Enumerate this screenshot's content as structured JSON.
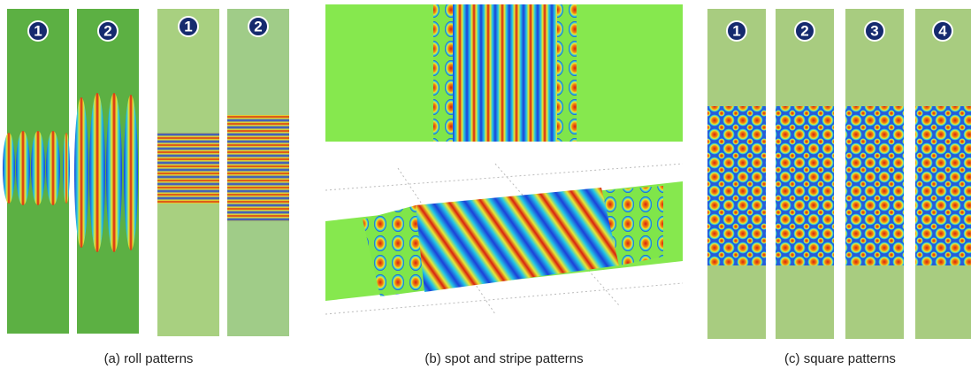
{
  "panels": [
    {
      "caption": "(a) roll patterns",
      "labels": [
        "1",
        "2",
        "1",
        "2"
      ]
    },
    {
      "caption": "(b) spot and stripe patterns"
    },
    {
      "caption": "(c) square patterns",
      "labels": [
        "1",
        "2",
        "3",
        "4"
      ]
    }
  ]
}
